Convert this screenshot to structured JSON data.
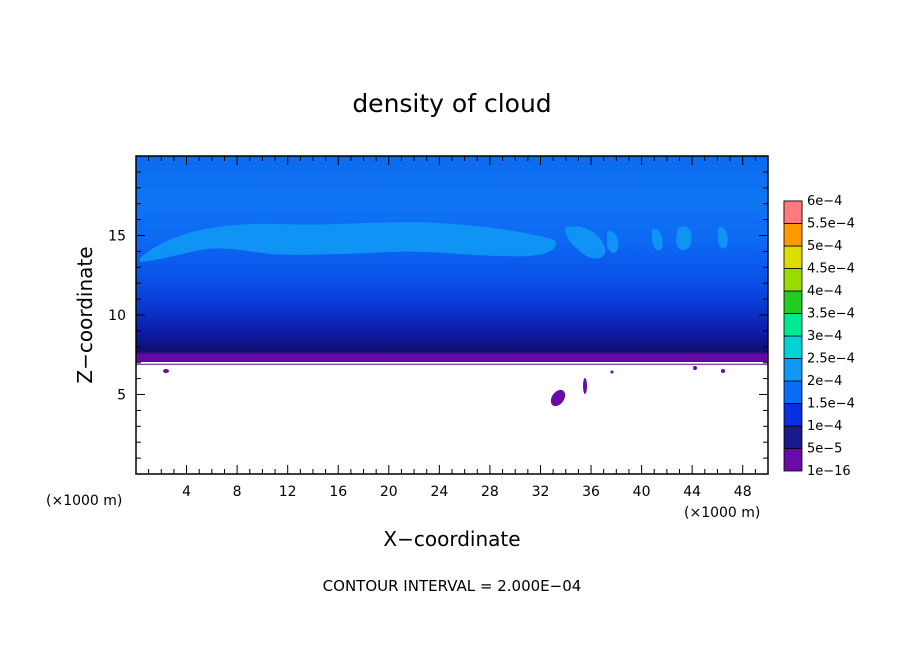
{
  "chart_data": {
    "type": "heatmap",
    "title": "density of cloud",
    "xlabel": "X−coordinate",
    "ylabel": "Z−coordinate",
    "x_unit": "(×1000 m)",
    "z_unit": "(×1000 m)",
    "xlim": [
      0,
      50
    ],
    "ylim": [
      0,
      20
    ],
    "x_ticks": [
      4,
      8,
      12,
      16,
      20,
      24,
      28,
      32,
      36,
      40,
      44,
      48
    ],
    "y_ticks": [
      5,
      10,
      15
    ],
    "colorbar": {
      "levels": [
        "1e−16",
        "5e−5",
        "1e−4",
        "1.5e−4",
        "2e−4",
        "2.5e−4",
        "3e−4",
        "3.5e−4",
        "4e−4",
        "4.5e−4",
        "5e−4",
        "5.5e−4",
        "6e−4"
      ],
      "values": [
        1e-16,
        5e-05,
        0.0001,
        0.00015,
        0.0002,
        0.00025,
        0.0003,
        0.00035,
        0.0004,
        0.00045,
        0.0005,
        0.00055,
        0.0006
      ],
      "colors": [
        "#6a0aa8",
        "#1a1a8c",
        "#0a2fe0",
        "#0a6ef5",
        "#1098f5",
        "#00d2d8",
        "#00e890",
        "#22cc22",
        "#99dd00",
        "#dddd00",
        "#ff9900",
        "#ff3300",
        "#ff7a7a"
      ]
    },
    "layers": [
      {
        "z0": 6.9,
        "z1": 7.6,
        "level": 1e-16
      },
      {
        "z0": 7.6,
        "z1": 9.0,
        "level": 5e-05
      },
      {
        "z0": 9.0,
        "z1": 12.5,
        "level": 0.0001
      },
      {
        "z0": 12.5,
        "z1": 20.0,
        "level": 0.0001
      }
    ],
    "cloud_base_z": 6.9,
    "contour_interval": "CONTOUR INTERVAL = 2.000E−04"
  }
}
